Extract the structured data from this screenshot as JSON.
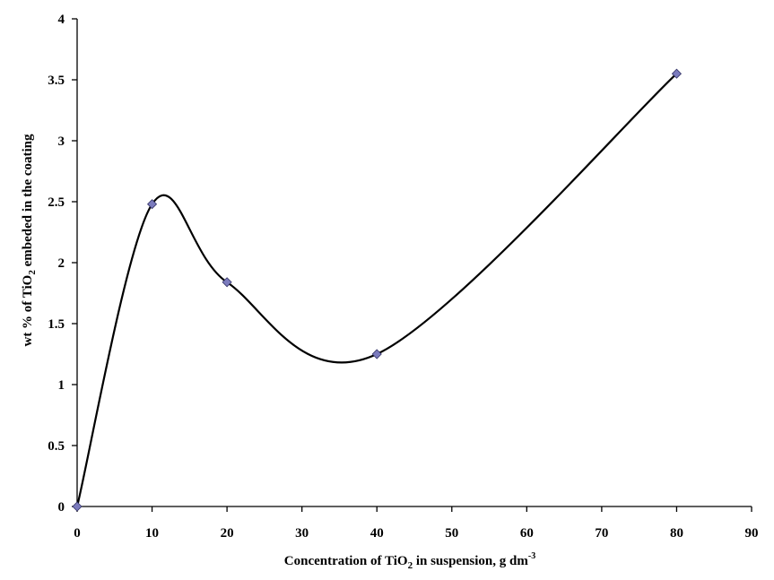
{
  "chart_data": {
    "type": "line",
    "title": "",
    "xlabel": {
      "prefix": "Concentration of TiO",
      "sub": "2",
      "suffix": " in suspension, g dm",
      "sup": "-3"
    },
    "ylabel": {
      "prefix": "wt % of TiO",
      "sub": "2",
      "suffix": " embeded in the coating"
    },
    "xlim": [
      0,
      90
    ],
    "ylim": [
      0,
      4
    ],
    "xticks": [
      "0",
      "10",
      "20",
      "30",
      "40",
      "50",
      "60",
      "70",
      "80",
      "90"
    ],
    "yticks": [
      "0",
      "0.5",
      "1",
      "1.5",
      "2",
      "2.5",
      "3",
      "3.5",
      "4"
    ],
    "grid": false,
    "legend": "none",
    "smooth": true,
    "line_color": "#000000",
    "marker_color": "#7b7bbd",
    "series": [
      {
        "x": [
          0,
          10,
          20,
          40,
          80
        ],
        "y": [
          0,
          2.48,
          1.84,
          1.25,
          3.55
        ]
      }
    ]
  }
}
